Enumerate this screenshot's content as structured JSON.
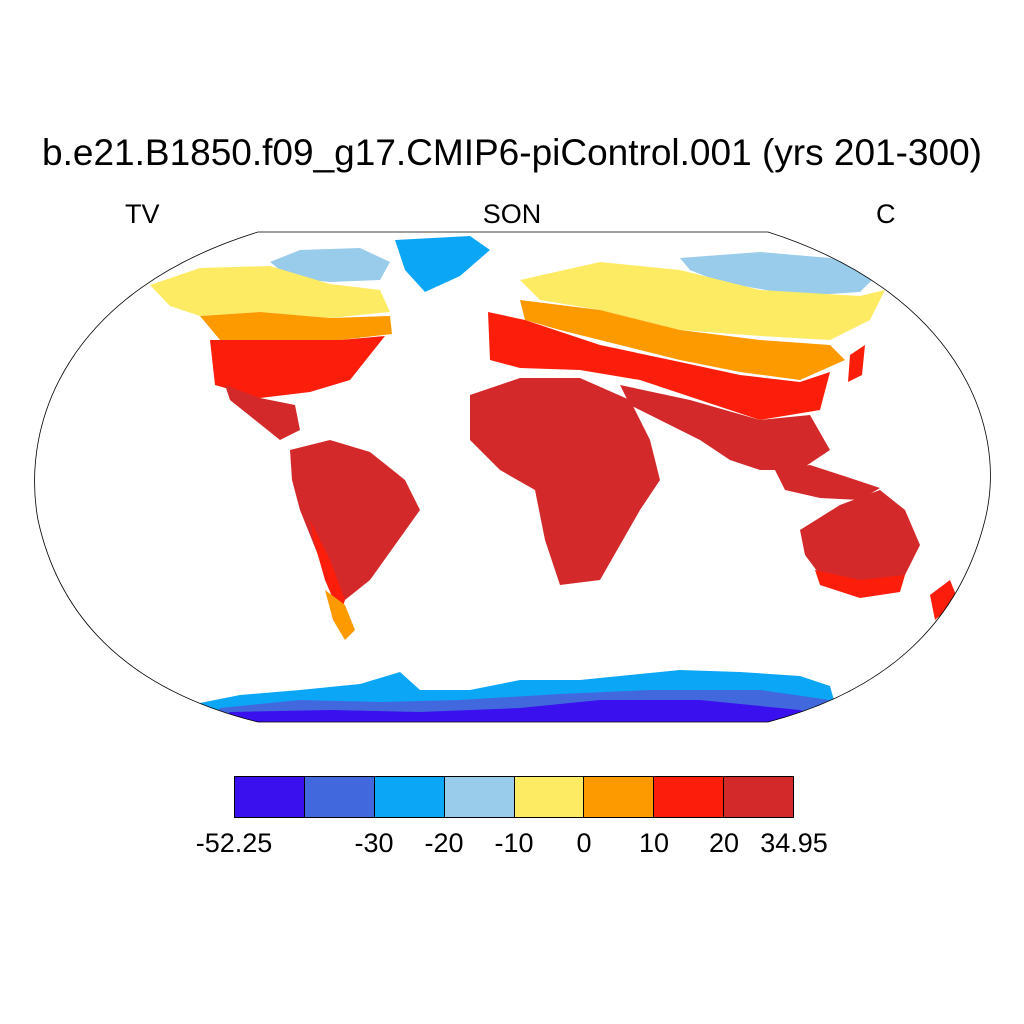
{
  "title": "b.e21.B1850.f09_g17.CMIP6-piControl.001 (yrs 201-300)",
  "left_label": "TV",
  "center_label": "SON",
  "right_label": "C",
  "colorbar": {
    "colors": [
      "#3b10ef",
      "#4169dd",
      "#0ba6f6",
      "#98ccea",
      "#fdeb63",
      "#fd9a00",
      "#fc1e0a",
      "#d3292a"
    ],
    "tick_labels": [
      "-52.25",
      "-30",
      "-20",
      "-10",
      "0",
      "10",
      "20",
      "34.95"
    ]
  },
  "chart_data": {
    "type": "heatmap",
    "title": "b.e21.B1850.f09_g17.CMIP6-piControl.001 (yrs 201-300)",
    "variable": "TV",
    "season": "SON",
    "units": "C",
    "projection": "Robinson",
    "levels": [
      -52.25,
      -40,
      -30,
      -20,
      -10,
      0,
      10,
      20,
      34.95
    ],
    "level_labels": [
      "-52.25",
      "-30",
      "-20",
      "-10",
      "0",
      "10",
      "20",
      "34.95"
    ]
  }
}
